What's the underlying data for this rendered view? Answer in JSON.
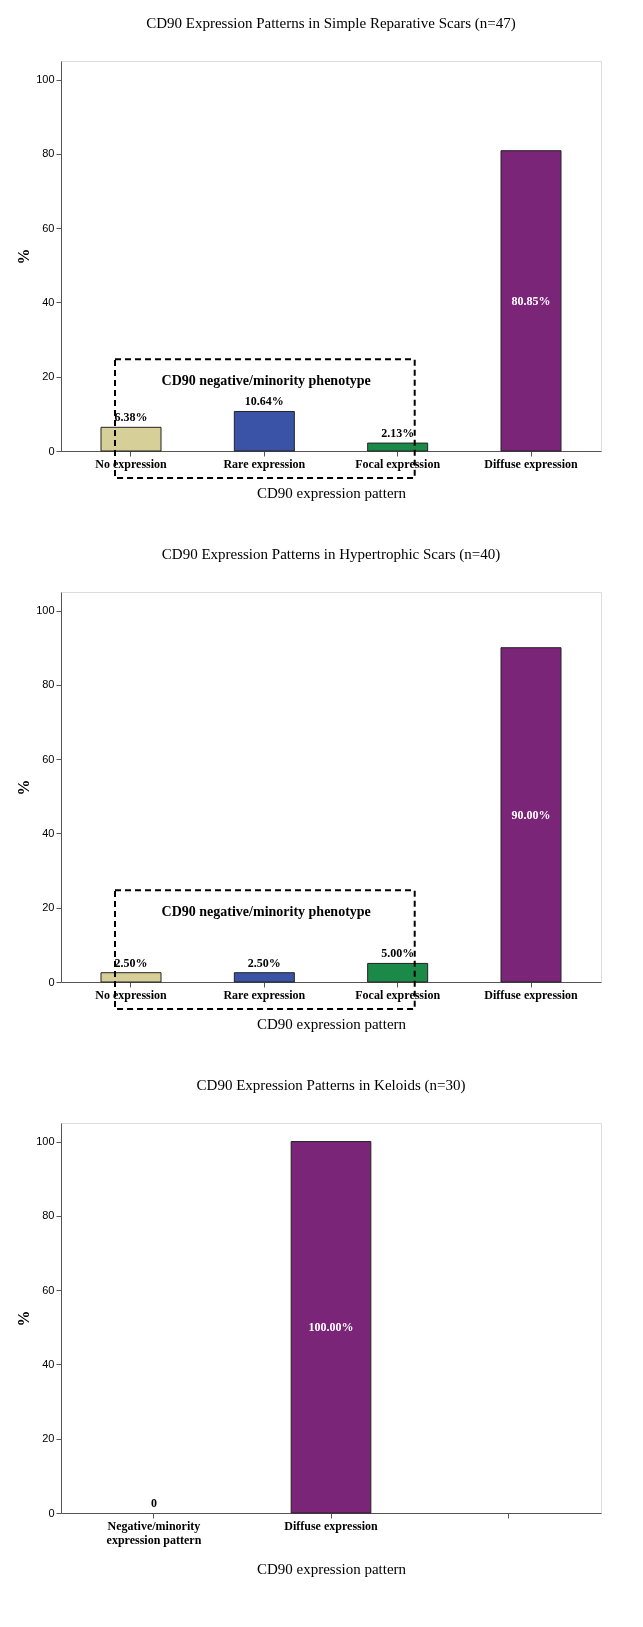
{
  "chart_data": [
    {
      "type": "bar",
      "title": "CD90 Expression Patterns in Simple Reparative Scars (n=47)",
      "xlabel": "CD90 expression pattern",
      "ylabel": "%",
      "categories": [
        "No expression",
        "Rare expression",
        "Focal expression",
        "Diffuse expression"
      ],
      "values": [
        6.38,
        10.64,
        2.13,
        80.85
      ],
      "colors": [
        "#d6cf97",
        "#3a53a6",
        "#1b8a48",
        "#7b2579"
      ],
      "value_labels": [
        "6.38%",
        "10.64%",
        "2.13%",
        "80.85%"
      ],
      "ylim": [
        0,
        105
      ],
      "yticks": [
        0,
        20,
        40,
        60,
        80,
        100
      ],
      "grid": false,
      "annotations": [
        "CD90 negative/minority phenotype"
      ]
    },
    {
      "type": "bar",
      "title": "CD90 Expression Patterns in Hypertrophic Scars (n=40)",
      "xlabel": "CD90 expression pattern",
      "ylabel": "%",
      "categories": [
        "No expression",
        "Rare expression",
        "Focal expression",
        "Diffuse expression"
      ],
      "values": [
        2.5,
        2.5,
        5.0,
        90.0
      ],
      "colors": [
        "#d6cf97",
        "#3a53a6",
        "#1b8a48",
        "#7b2579"
      ],
      "value_labels": [
        "2.50%",
        "2.50%",
        "5.00%",
        "90.00%"
      ],
      "ylim": [
        0,
        105
      ],
      "yticks": [
        0,
        20,
        40,
        60,
        80,
        100
      ],
      "grid": false,
      "annotations": [
        "CD90 negative/minority phenotype"
      ]
    },
    {
      "type": "bar",
      "title": "CD90 Expression Patterns in Keloids (n=30)",
      "xlabel": "CD90 expression pattern",
      "ylabel": "%",
      "categories": [
        "Negative/minority\nexpression pattern",
        "Diffuse expression"
      ],
      "values": [
        0,
        100
      ],
      "colors": [
        "#d6cf97",
        "#7b2579"
      ],
      "value_labels": [
        "0",
        "100.00%"
      ],
      "ylim": [
        0,
        105
      ],
      "yticks": [
        0,
        20,
        40,
        60,
        80,
        100
      ],
      "grid": false
    }
  ]
}
